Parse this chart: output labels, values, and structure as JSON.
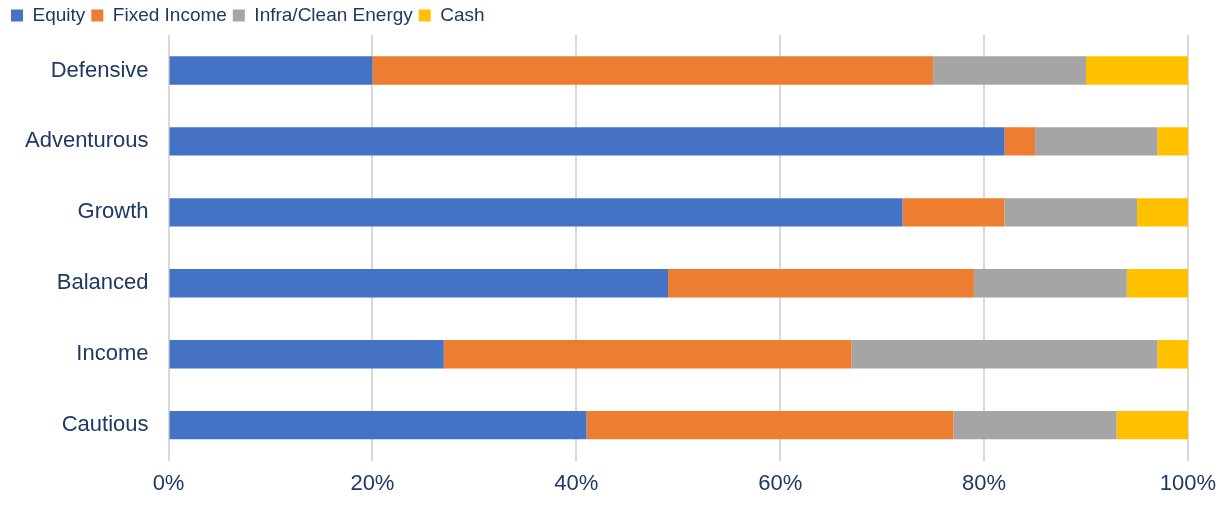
{
  "chart_data": {
    "type": "bar",
    "orientation": "horizontal",
    "stacked": true,
    "categories": [
      "Defensive",
      "Adventurous",
      "Growth",
      "Balanced",
      "Income",
      "Cautious"
    ],
    "series": [
      {
        "name": "Equity",
        "color": "#4472c4",
        "values": [
          20,
          82,
          72,
          49,
          27,
          41
        ]
      },
      {
        "name": "Fixed Income",
        "color": "#ed7d31",
        "values": [
          55,
          3,
          10,
          30,
          40,
          36
        ]
      },
      {
        "name": "Infra/Clean Energy",
        "color": "#a5a5a5",
        "values": [
          15,
          12,
          13,
          15,
          30,
          16
        ]
      },
      {
        "name": "Cash",
        "color": "#ffc000",
        "values": [
          10,
          3,
          5,
          6,
          3,
          7
        ]
      }
    ],
    "xlim": [
      0,
      100
    ],
    "xticks": [
      {
        "value": 0,
        "label": "0%"
      },
      {
        "value": 20,
        "label": "20%"
      },
      {
        "value": 40,
        "label": "40%"
      },
      {
        "value": 60,
        "label": "60%"
      },
      {
        "value": 80,
        "label": "80%"
      },
      {
        "value": 100,
        "label": "100%"
      }
    ],
    "grid": "x",
    "legend": "top"
  }
}
